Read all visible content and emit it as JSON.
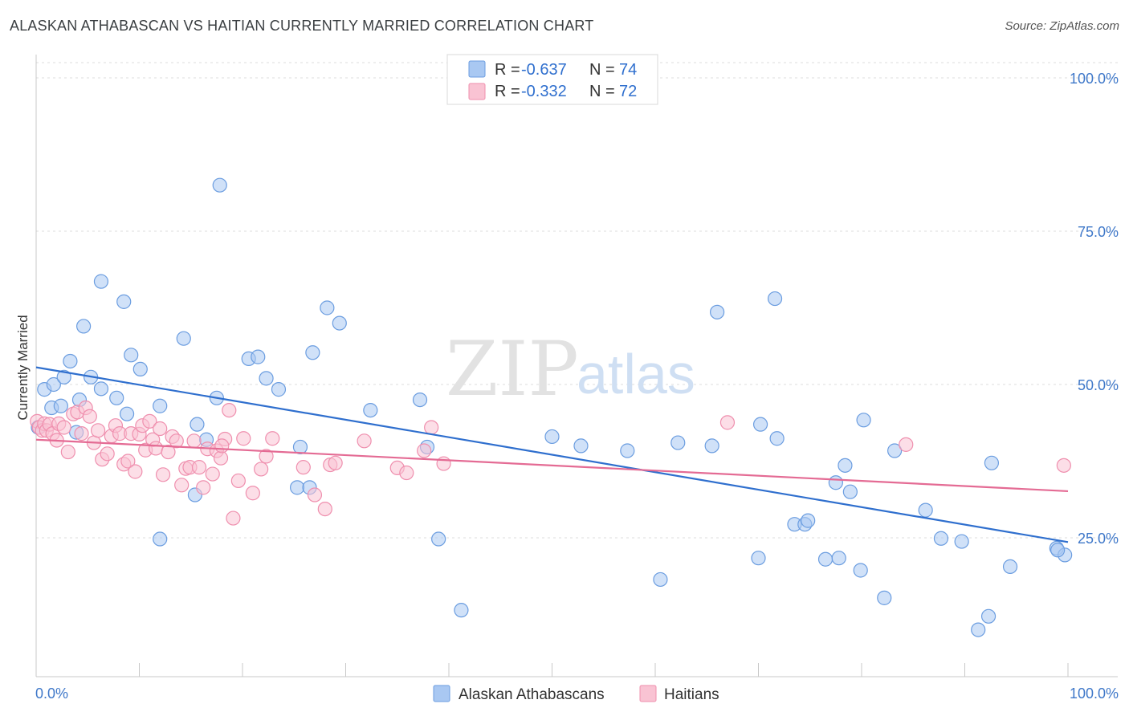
{
  "title": "ALASKAN ATHABASCAN VS HAITIAN CURRENTLY MARRIED CORRELATION CHART",
  "source": "Source: ZipAtlas.com",
  "watermark": {
    "zip": "ZIP",
    "atlas": "atlas"
  },
  "legend": {
    "r_label": "R =",
    "n_label": "N =",
    "rows": [
      {
        "r": "-0.637",
        "n": "74",
        "color": "#a9c8f2",
        "stroke": "#6b9de0"
      },
      {
        "r": "-0.332",
        "n": "72",
        "color": "#f9c3d3",
        "stroke": "#ef8fae"
      }
    ]
  },
  "bottom_legend": [
    "Alaskan Athabascans",
    "Haitians"
  ],
  "chart_data": {
    "type": "scatter",
    "title": "ALASKAN ATHABASCAN VS HAITIAN CURRENTLY MARRIED CORRELATION CHART",
    "xlabel": "",
    "ylabel": "Currently Married",
    "xlim": [
      0,
      100
    ],
    "ylim": [
      0,
      105
    ],
    "x_tick_labels": [
      "0.0%",
      "100.0%"
    ],
    "y_ticks": [
      25,
      50,
      75,
      100
    ],
    "y_tick_labels": [
      "25.0%",
      "50.0%",
      "75.0%",
      "100.0%"
    ],
    "grid": true,
    "legend_position": "top-center",
    "series": [
      {
        "name": "Alaskan Athabascans",
        "color": "#6b9de0",
        "fill": "#a9c8f2",
        "trend": {
          "x": [
            0,
            100
          ],
          "y": [
            52.8,
            24.3
          ],
          "color": "#2f6fce"
        },
        "points": [
          [
            0.2,
            43.0
          ],
          [
            0.8,
            49.2
          ],
          [
            1.5,
            46.2
          ],
          [
            1.7,
            50.0
          ],
          [
            2.4,
            46.5
          ],
          [
            2.7,
            51.2
          ],
          [
            3.3,
            53.8
          ],
          [
            3.9,
            42.2
          ],
          [
            4.2,
            47.5
          ],
          [
            4.6,
            59.5
          ],
          [
            5.3,
            51.2
          ],
          [
            6.3,
            49.3
          ],
          [
            6.3,
            66.8
          ],
          [
            7.8,
            47.8
          ],
          [
            8.5,
            63.5
          ],
          [
            8.8,
            45.2
          ],
          [
            9.2,
            54.8
          ],
          [
            10.1,
            52.5
          ],
          [
            12.0,
            46.5
          ],
          [
            12.0,
            24.8
          ],
          [
            14.3,
            57.5
          ],
          [
            15.4,
            32.0
          ],
          [
            15.6,
            43.5
          ],
          [
            16.5,
            41.0
          ],
          [
            17.5,
            47.8
          ],
          [
            17.8,
            82.5
          ],
          [
            20.6,
            54.2
          ],
          [
            21.5,
            54.5
          ],
          [
            22.3,
            51.0
          ],
          [
            23.5,
            49.2
          ],
          [
            25.3,
            33.2
          ],
          [
            25.6,
            39.8
          ],
          [
            26.5,
            33.2
          ],
          [
            26.8,
            55.2
          ],
          [
            28.2,
            62.5
          ],
          [
            29.4,
            60.0
          ],
          [
            32.4,
            45.8
          ],
          [
            37.2,
            47.5
          ],
          [
            37.9,
            39.8
          ],
          [
            39.0,
            24.8
          ],
          [
            41.2,
            13.2
          ],
          [
            50.0,
            41.5
          ],
          [
            52.8,
            40.0
          ],
          [
            57.3,
            39.2
          ],
          [
            60.5,
            18.2
          ],
          [
            62.2,
            40.5
          ],
          [
            65.5,
            40.0
          ],
          [
            66.0,
            61.8
          ],
          [
            70.0,
            21.7
          ],
          [
            70.2,
            43.5
          ],
          [
            71.6,
            64.0
          ],
          [
            71.8,
            41.2
          ],
          [
            73.5,
            27.2
          ],
          [
            74.5,
            27.2
          ],
          [
            74.8,
            27.8
          ],
          [
            76.5,
            21.5
          ],
          [
            77.5,
            34.0
          ],
          [
            77.8,
            21.7
          ],
          [
            78.4,
            36.8
          ],
          [
            78.9,
            32.5
          ],
          [
            79.9,
            19.7
          ],
          [
            80.2,
            44.2
          ],
          [
            82.2,
            15.2
          ],
          [
            83.2,
            39.2
          ],
          [
            86.2,
            29.5
          ],
          [
            87.7,
            24.9
          ],
          [
            89.7,
            24.4
          ],
          [
            91.3,
            10.0
          ],
          [
            92.3,
            12.2
          ],
          [
            92.6,
            37.2
          ],
          [
            94.4,
            20.3
          ],
          [
            98.9,
            23.3
          ],
          [
            99.7,
            22.2
          ],
          [
            99.0,
            23.0
          ]
        ]
      },
      {
        "name": "Haitians",
        "color": "#ef8fae",
        "fill": "#f9c3d3",
        "trend": {
          "x": [
            0,
            100
          ],
          "y": [
            41.0,
            32.6
          ],
          "color": "#e46b94"
        },
        "points": [
          [
            0.1,
            44.0
          ],
          [
            0.3,
            43.0
          ],
          [
            0.6,
            42.5
          ],
          [
            0.8,
            43.6
          ],
          [
            1.0,
            42.5
          ],
          [
            1.3,
            43.5
          ],
          [
            1.6,
            42.0
          ],
          [
            2.0,
            40.9
          ],
          [
            2.2,
            43.6
          ],
          [
            2.7,
            43.0
          ],
          [
            3.1,
            39.0
          ],
          [
            3.6,
            45.2
          ],
          [
            4.0,
            45.5
          ],
          [
            4.4,
            42.0
          ],
          [
            4.8,
            46.2
          ],
          [
            5.2,
            44.8
          ],
          [
            5.6,
            40.5
          ],
          [
            6.0,
            42.5
          ],
          [
            6.4,
            37.8
          ],
          [
            6.9,
            38.7
          ],
          [
            7.3,
            41.6
          ],
          [
            7.7,
            43.3
          ],
          [
            8.1,
            42.0
          ],
          [
            8.5,
            37.0
          ],
          [
            8.9,
            37.5
          ],
          [
            9.2,
            42.0
          ],
          [
            9.6,
            35.8
          ],
          [
            10.0,
            41.9
          ],
          [
            10.3,
            43.3
          ],
          [
            10.6,
            39.3
          ],
          [
            11.0,
            44.0
          ],
          [
            11.3,
            41.0
          ],
          [
            11.6,
            39.6
          ],
          [
            12.0,
            42.8
          ],
          [
            12.3,
            35.3
          ],
          [
            12.8,
            39.0
          ],
          [
            13.2,
            41.5
          ],
          [
            13.6,
            40.8
          ],
          [
            14.1,
            33.6
          ],
          [
            14.5,
            36.3
          ],
          [
            14.9,
            36.5
          ],
          [
            15.3,
            40.8
          ],
          [
            15.8,
            36.5
          ],
          [
            16.2,
            33.2
          ],
          [
            16.6,
            39.5
          ],
          [
            17.1,
            35.4
          ],
          [
            17.5,
            39.2
          ],
          [
            17.9,
            38.0
          ],
          [
            18.3,
            41.1
          ],
          [
            18.7,
            45.8
          ],
          [
            19.1,
            28.2
          ],
          [
            19.6,
            34.3
          ],
          [
            20.1,
            41.2
          ],
          [
            21.0,
            32.3
          ],
          [
            21.8,
            36.2
          ],
          [
            22.3,
            38.3
          ],
          [
            22.9,
            41.2
          ],
          [
            25.9,
            36.5
          ],
          [
            27.0,
            32.0
          ],
          [
            28.0,
            29.7
          ],
          [
            28.5,
            36.9
          ],
          [
            29.0,
            37.2
          ],
          [
            31.8,
            40.8
          ],
          [
            35.0,
            36.4
          ],
          [
            35.9,
            35.6
          ],
          [
            37.6,
            39.2
          ],
          [
            38.3,
            43.0
          ],
          [
            39.5,
            37.1
          ],
          [
            67.0,
            43.8
          ],
          [
            84.3,
            40.2
          ],
          [
            99.6,
            36.8
          ],
          [
            18.0,
            40.0
          ]
        ]
      }
    ]
  }
}
